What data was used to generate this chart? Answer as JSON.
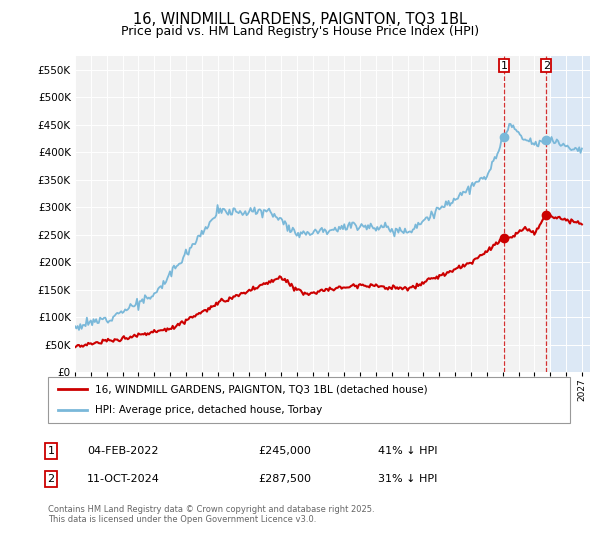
{
  "title": "16, WINDMILL GARDENS, PAIGNTON, TQ3 1BL",
  "subtitle": "Price paid vs. HM Land Registry's House Price Index (HPI)",
  "legend_line1": "16, WINDMILL GARDENS, PAIGNTON, TQ3 1BL (detached house)",
  "legend_line2": "HPI: Average price, detached house, Torbay",
  "transaction1_label": "1",
  "transaction1_date": "04-FEB-2022",
  "transaction1_price": "£245,000",
  "transaction1_hpi": "41% ↓ HPI",
  "transaction2_label": "2",
  "transaction2_date": "11-OCT-2024",
  "transaction2_price": "£287,500",
  "transaction2_hpi": "31% ↓ HPI",
  "footnote_line1": "Contains HM Land Registry data © Crown copyright and database right 2025.",
  "footnote_line2": "This data is licensed under the Open Government Licence v3.0.",
  "hpi_color": "#7ab8d9",
  "price_color": "#cc0000",
  "vline_color": "#cc0000",
  "shading_color": "#dce8f5",
  "bg_color": "#f2f2f2",
  "ylim_max": 575000,
  "ylim_min": 0,
  "transaction1_year": 2022.09,
  "transaction2_year": 2024.75,
  "shade_start": 2025.0,
  "xmin": 1995,
  "xmax": 2027.5
}
